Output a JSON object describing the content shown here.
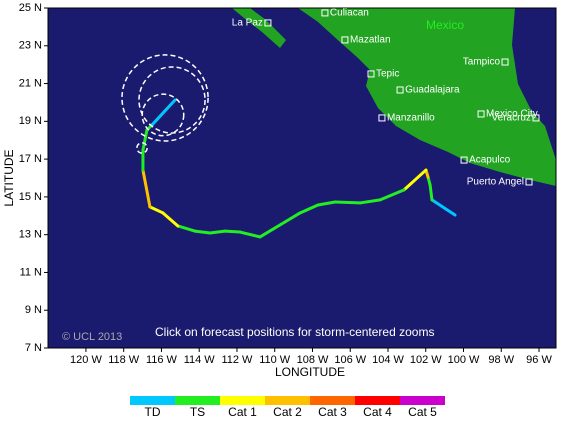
{
  "map": {
    "xlim": [
      122.01,
      95.1
    ],
    "ylim": [
      7,
      25
    ],
    "xlabel": "LONGITUDE",
    "ylabel": "LATITUDE",
    "xticks": [
      {
        "value": 120,
        "label": "120 W"
      },
      {
        "value": 118,
        "label": "118 W"
      },
      {
        "value": 116,
        "label": "116 W"
      },
      {
        "value": 114,
        "label": "114 W"
      },
      {
        "value": 112,
        "label": "112 W"
      },
      {
        "value": 110,
        "label": "110 W"
      },
      {
        "value": 108,
        "label": "108 W"
      },
      {
        "value": 106,
        "label": "106 W"
      },
      {
        "value": 104,
        "label": "104 W"
      },
      {
        "value": 102,
        "label": "102 W"
      },
      {
        "value": 100,
        "label": "100 W"
      },
      {
        "value": 98,
        "label": "98 W"
      },
      {
        "value": 96,
        "label": "96 W"
      }
    ],
    "yticks": [
      {
        "value": 25,
        "label": "25 N"
      },
      {
        "value": 23,
        "label": "23 N"
      },
      {
        "value": 21,
        "label": "21 N"
      },
      {
        "value": 19,
        "label": "19 N"
      },
      {
        "value": 17,
        "label": "17 N"
      },
      {
        "value": 15,
        "label": "15 N"
      },
      {
        "value": 13,
        "label": "13 N"
      },
      {
        "value": 11,
        "label": "11 N"
      },
      {
        "value": 9,
        "label": "9 N"
      },
      {
        "value": 7,
        "label": "7 N"
      }
    ],
    "country_label": "Mexico",
    "cities": [
      {
        "name": "Culiacan",
        "lon": 107.34,
        "lat": 24.74,
        "side": "right"
      },
      {
        "name": "La Paz",
        "lon": 110.36,
        "lat": 24.21,
        "side": "left"
      },
      {
        "name": "Mazatlan",
        "lon": 106.28,
        "lat": 23.31,
        "side": "right"
      },
      {
        "name": "Tepic",
        "lon": 104.9,
        "lat": 21.51,
        "side": "right"
      },
      {
        "name": "Guadalajara",
        "lon": 103.36,
        "lat": 20.66,
        "side": "right"
      },
      {
        "name": "Manzanillo",
        "lon": 104.32,
        "lat": 19.18,
        "side": "right"
      },
      {
        "name": "Tampico",
        "lon": 97.8,
        "lat": 22.14,
        "side": "left"
      },
      {
        "name": "Mexico City",
        "lon": 99.07,
        "lat": 19.39,
        "side": "right"
      },
      {
        "name": "Veracruz",
        "lon": 96.16,
        "lat": 19.18,
        "side": "left"
      },
      {
        "name": "Acapulco",
        "lon": 99.97,
        "lat": 16.95,
        "side": "right"
      },
      {
        "name": "Puerto Angel",
        "lon": 96.53,
        "lat": 15.79,
        "side": "left"
      }
    ],
    "track": [
      {
        "lon": 100.45,
        "lat": 14.04,
        "cat": "TD"
      },
      {
        "lon": 101.67,
        "lat": 14.84,
        "cat": "TS"
      },
      {
        "lon": 101.77,
        "lat": 15.63,
        "cat": "TS"
      },
      {
        "lon": 101.88,
        "lat": 16.05,
        "cat": "Cat 2"
      },
      {
        "lon": 101.99,
        "lat": 16.42,
        "cat": "Cat 1"
      },
      {
        "lon": 103.15,
        "lat": 15.37,
        "cat": "TS"
      },
      {
        "lon": 104.42,
        "lat": 14.84,
        "cat": "TS"
      },
      {
        "lon": 105.48,
        "lat": 14.68,
        "cat": "TS"
      },
      {
        "lon": 106.81,
        "lat": 14.73,
        "cat": "TS"
      },
      {
        "lon": 107.71,
        "lat": 14.57,
        "cat": "TS"
      },
      {
        "lon": 108.66,
        "lat": 14.15,
        "cat": "TS"
      },
      {
        "lon": 109.46,
        "lat": 13.67,
        "cat": "TS"
      },
      {
        "lon": 110.78,
        "lat": 12.88,
        "cat": "TS"
      },
      {
        "lon": 111.84,
        "lat": 13.14,
        "cat": "TS"
      },
      {
        "lon": 112.64,
        "lat": 13.19,
        "cat": "TS"
      },
      {
        "lon": 113.43,
        "lat": 13.09,
        "cat": "TS"
      },
      {
        "lon": 114.23,
        "lat": 13.19,
        "cat": "TS"
      },
      {
        "lon": 115.13,
        "lat": 13.46,
        "cat": "Cat 1"
      },
      {
        "lon": 115.92,
        "lat": 14.15,
        "cat": "Cat 1"
      },
      {
        "lon": 116.61,
        "lat": 14.47,
        "cat": "Cat 2"
      },
      {
        "lon": 116.98,
        "lat": 16.42,
        "cat": "TS"
      },
      {
        "lon": 116.98,
        "lat": 17.48,
        "cat": "TS"
      },
      {
        "lon": 116.77,
        "lat": 18.54,
        "cat": "TS"
      },
      {
        "lon": 116.5,
        "lat": 18.81,
        "cat": "TD"
      },
      {
        "lon": 115.28,
        "lat": 20.13,
        "cat": "TD"
      }
    ],
    "forecast": [
      {
        "lon": 115.81,
        "lat": 20.24,
        "radius": 2.28
      },
      {
        "lon": 115.44,
        "lat": 20.13,
        "radius": 1.75
      },
      {
        "lon": 115.92,
        "lat": 19.34,
        "radius": 1.1
      },
      {
        "lon": 117.03,
        "lat": 17.59,
        "radius": 0.27
      }
    ],
    "legend": [
      {
        "label": "TD",
        "color": "#00c8ff"
      },
      {
        "label": "TS",
        "color": "#22ee22"
      },
      {
        "label": "Cat 1",
        "color": "#ffff00"
      },
      {
        "label": "Cat 2",
        "color": "#ffc000"
      },
      {
        "label": "Cat 3",
        "color": "#ff6600"
      },
      {
        "label": "Cat 4",
        "color": "#ff0000"
      },
      {
        "label": "Cat 5",
        "color": "#cc00cc"
      }
    ],
    "copyright": "© UCL 2013",
    "note": "Click on forecast positions for storm-centered zooms"
  }
}
